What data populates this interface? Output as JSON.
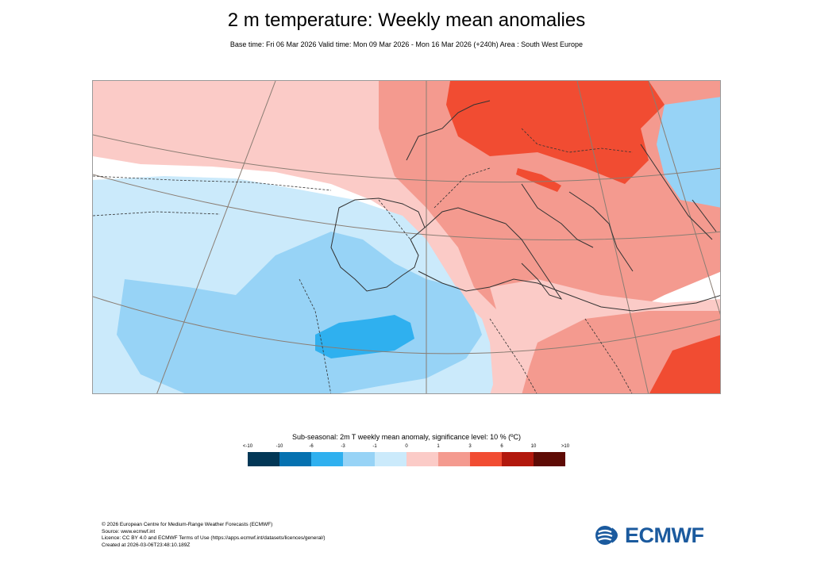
{
  "title": "2 m temperature: Weekly mean anomalies",
  "subtitle": "Base time: Fri 06 Mar 2026 Valid time: Mon 09 Mar 2026 - Mon 16 Mar 2026 (+240h) Area : South West Europe",
  "map": {
    "area": "South West Europe",
    "colors": {
      "sea_bg": "#ffffff",
      "light_blue": "#cbeafb",
      "mid_blue": "#97d3f6",
      "strong_blue": "#2fb0ef",
      "light_red": "#fbcbc7",
      "mid_red": "#f49a8f",
      "strong_red": "#f14c32",
      "coast": "#333333",
      "grid": "#8a7d73"
    }
  },
  "legend": {
    "title": "Sub-seasonal: 2m T weekly mean anomaly, significance level: 10 % (ºC)",
    "ticks": [
      "<-10",
      "-10",
      "-6",
      "-3",
      "-1",
      "0",
      "1",
      "3",
      "6",
      "10",
      ">10"
    ],
    "colors": [
      "#023756",
      "#0571b0",
      "#2fb0ef",
      "#97d3f6",
      "#cbeafb",
      "#fbcbc7",
      "#f49a8f",
      "#f14c32",
      "#b2180d",
      "#5e0b05"
    ]
  },
  "footer": {
    "line1": "© 2026 European Centre for Medium-Range Weather Forecasts (ECMWF)",
    "line2": "Source: www.ecmwf.int",
    "line3": "Licence: CC BY 4.0 and ECMWF Terms of Use (https://apps.ecmwf.int/datasets/licences/general/)",
    "line4": "Created at 2026-03-06T23:48:10.189Z"
  },
  "logo": {
    "text": "ECMWF",
    "color": "#1b5a9e"
  }
}
